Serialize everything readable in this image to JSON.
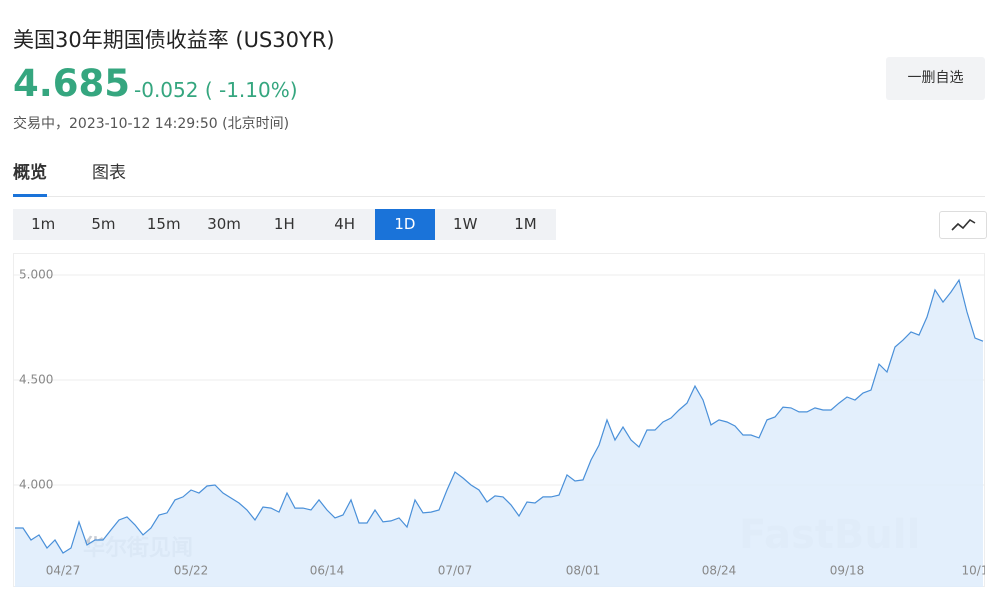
{
  "header": {
    "title": "美国30年期国债收益率 (US30YR)",
    "price": "4.685",
    "change": "-0.052 ( -1.10%)",
    "status": "交易中，2023-10-12 14:29:50 (北京时间)",
    "button": "一删自选"
  },
  "tabs": [
    "概览",
    "图表"
  ],
  "intervals": [
    "1m",
    "5m",
    "15m",
    "30m",
    "1H",
    "4H",
    "1D",
    "1W",
    "1M"
  ],
  "active_interval": "1D",
  "chart_data": {
    "type": "area",
    "color": "#4a90d9",
    "fill": "#deecfb",
    "grid": true,
    "watermarks": [
      "华尔街见闻",
      "FastBull"
    ],
    "ylim": [
      3.514,
      5.105
    ],
    "yticks": [
      {
        "value": 4,
        "label": "4.000"
      },
      {
        "value": 4.5,
        "label": "4.500"
      },
      {
        "value": 5,
        "label": "5.000"
      }
    ],
    "categories": [
      null,
      null,
      null,
      null,
      null,
      null,
      "04/27",
      null,
      null,
      null,
      null,
      null,
      null,
      null,
      null,
      null,
      null,
      null,
      null,
      null,
      null,
      null,
      "05/22",
      null,
      null,
      null,
      null,
      null,
      null,
      null,
      null,
      null,
      null,
      null,
      null,
      null,
      null,
      null,
      null,
      "06/14",
      null,
      null,
      null,
      null,
      null,
      null,
      null,
      null,
      null,
      null,
      null,
      null,
      null,
      null,
      null,
      "07/07",
      null,
      null,
      null,
      null,
      null,
      null,
      null,
      null,
      null,
      null,
      null,
      null,
      null,
      null,
      null,
      "08/01",
      null,
      null,
      null,
      null,
      null,
      null,
      null,
      null,
      null,
      null,
      null,
      null,
      null,
      null,
      null,
      null,
      "08/24",
      null,
      null,
      null,
      null,
      null,
      null,
      null,
      null,
      null,
      null,
      null,
      null,
      null,
      null,
      null,
      "09/18",
      null,
      null,
      null,
      null,
      null,
      null,
      null,
      null,
      null,
      null,
      null,
      null,
      null,
      null,
      null,
      "10/1",
      null
    ],
    "values": [
      3.795,
      3.795,
      3.738,
      3.762,
      3.7,
      3.738,
      3.676,
      3.7,
      3.824,
      3.714,
      3.738,
      3.738,
      3.786,
      3.833,
      3.848,
      3.81,
      3.762,
      3.795,
      3.857,
      3.867,
      3.929,
      3.943,
      3.976,
      3.962,
      3.995,
      4.0,
      3.962,
      3.938,
      3.914,
      3.881,
      3.833,
      3.895,
      3.89,
      3.871,
      3.962,
      3.89,
      3.89,
      3.881,
      3.929,
      3.881,
      3.843,
      3.857,
      3.929,
      3.819,
      3.819,
      3.881,
      3.824,
      3.829,
      3.843,
      3.8,
      3.929,
      3.867,
      3.871,
      3.881,
      3.976,
      4.062,
      4.033,
      4.0,
      3.976,
      3.919,
      3.948,
      3.943,
      3.905,
      3.852,
      3.919,
      3.914,
      3.943,
      3.943,
      3.952,
      4.048,
      4.019,
      4.024,
      4.119,
      4.19,
      4.31,
      4.214,
      4.276,
      4.214,
      4.181,
      4.262,
      4.262,
      4.3,
      4.319,
      4.357,
      4.39,
      4.471,
      4.405,
      4.286,
      4.31,
      4.3,
      4.281,
      4.238,
      4.238,
      4.224,
      4.31,
      4.324,
      4.371,
      4.367,
      4.348,
      4.348,
      4.367,
      4.357,
      4.357,
      4.39,
      4.419,
      4.405,
      4.438,
      4.452,
      4.576,
      4.538,
      4.657,
      4.69,
      4.729,
      4.714,
      4.8,
      4.929,
      4.871,
      4.919,
      4.976,
      4.824,
      4.7,
      4.685
    ]
  }
}
